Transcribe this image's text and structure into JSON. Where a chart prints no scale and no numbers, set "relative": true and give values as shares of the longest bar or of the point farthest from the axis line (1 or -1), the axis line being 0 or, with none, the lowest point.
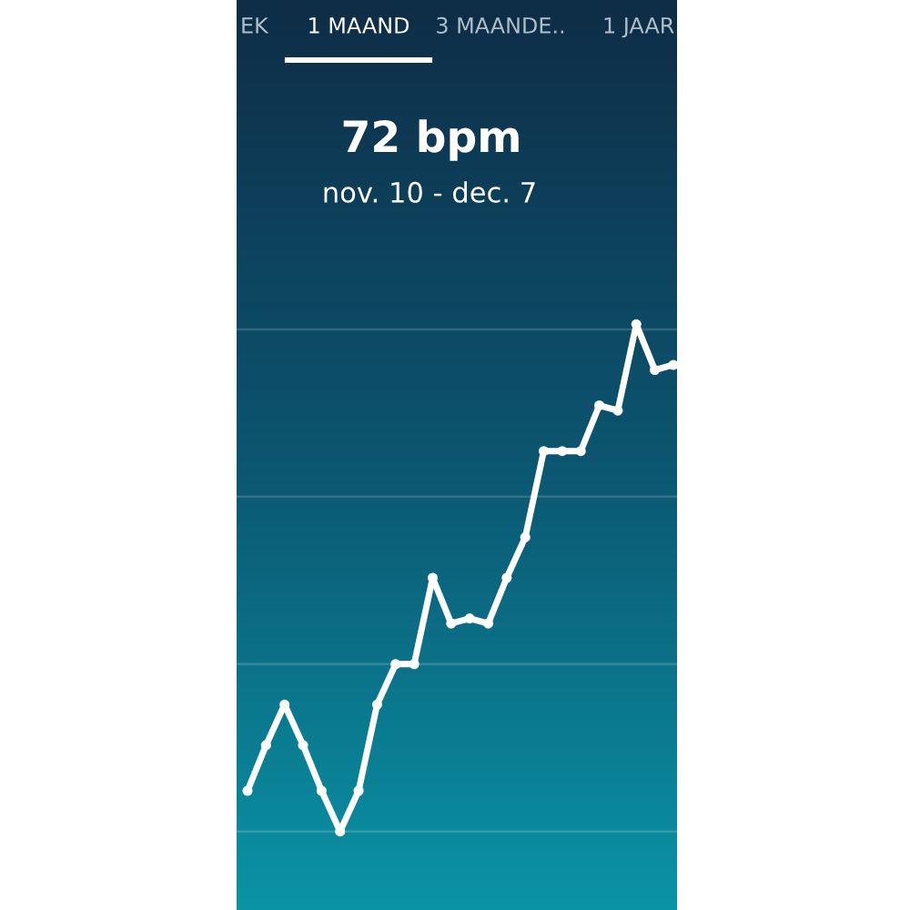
{
  "chart_data": {
    "type": "line",
    "title": "72 bpm",
    "subtitle": "nov. 10 - dec. 7",
    "annotations": [
      "EK",
      "1 MAAND",
      "3 MAANDE..",
      "1 JAAR"
    ],
    "categories": [
      null,
      null,
      null,
      null,
      null,
      null,
      null,
      null,
      null,
      null,
      null,
      null,
      null,
      null,
      null,
      null,
      null,
      null,
      null,
      null,
      null,
      null,
      null,
      null
    ],
    "series": [
      {
        "color": "#ffffff",
        "values": [
          0.08,
          0.17,
          0.25,
          0.17,
          0.08,
          0.0,
          0.08,
          0.25,
          0.33,
          0.33,
          0.5,
          0.41,
          0.42,
          0.41,
          0.5,
          0.58,
          0.75,
          0.75,
          0.75,
          0.84,
          0.83,
          1.0,
          0.91,
          0.92
        ]
      }
    ],
    "relative": true,
    "grid": "y",
    "marker": "circle",
    "line_style": "solid"
  }
}
